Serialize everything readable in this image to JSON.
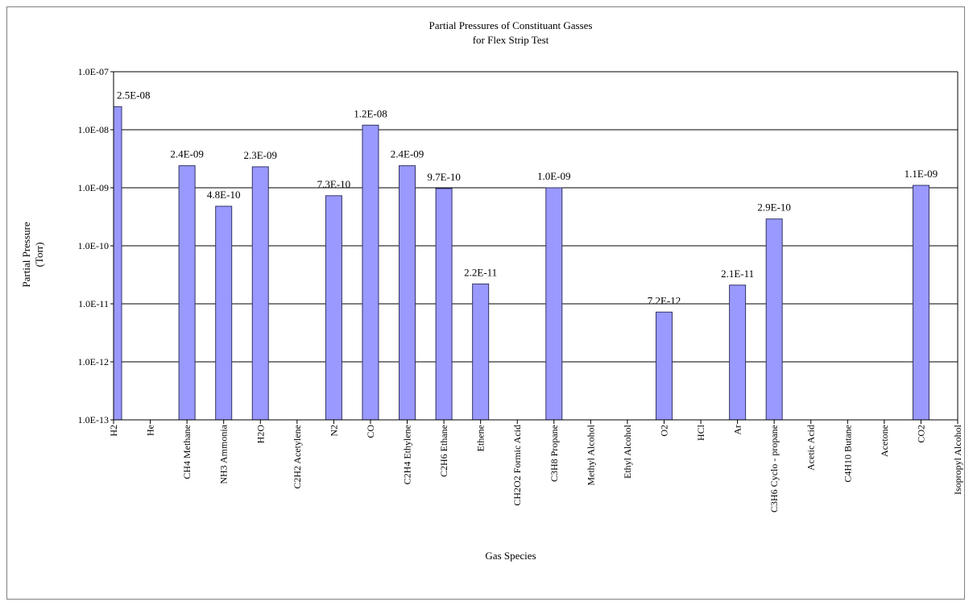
{
  "chart_data": {
    "type": "bar",
    "title": "Partial Pressures of Constituant Gasses",
    "subtitle": "for Flex Strip Test",
    "xlabel": "Gas Species",
    "ylabel": "Partial Pressure",
    "ylabel_unit": "(Torr)",
    "y_scale": "log",
    "ylim": [
      1e-13,
      1e-07
    ],
    "y_ticks": [
      1e-13,
      1e-12,
      1e-11,
      1e-10,
      1e-09,
      1e-08,
      1e-07
    ],
    "y_tick_labels": [
      "1.0E-13",
      "1.0E-12",
      "1.0E-11",
      "1.0E-10",
      "1.0E-09",
      "1.0E-08",
      "1.0E-07"
    ],
    "grid": "horizontal major lines",
    "bar_color": "#9999ff",
    "bar_edge_color": "#333366",
    "categories": [
      "H2",
      "He",
      "CH4 Methane",
      "NH3 Ammonia",
      "H2O",
      "C2H2 Acetylene",
      "N2",
      "CO",
      "C2H4 Ethylene",
      "C2H6 Ethane",
      "Ethene",
      "CH2O2 Formic Acid",
      "C3H8 Propane",
      "Methyl Alcohol",
      "Ethyl Alcohol",
      "O2",
      "HCl",
      "Ar",
      "C3H6 Cyclo - propane",
      "Acetic Acid",
      "C4H10 Butane",
      "Acetone",
      "CO2",
      "Isopropyl Alcohol"
    ],
    "values": [
      2.5e-08,
      null,
      2.4e-09,
      4.8e-10,
      2.3e-09,
      null,
      7.3e-10,
      1.2e-08,
      2.4e-09,
      9.7e-10,
      2.2e-11,
      null,
      1e-09,
      null,
      null,
      7.2e-12,
      null,
      2.1e-11,
      2.9e-10,
      null,
      null,
      null,
      1.1e-09,
      null
    ],
    "data_labels": [
      "2.5E-08",
      "",
      "2.4E-09",
      "4.8E-10",
      "2.3E-09",
      "",
      "7.3E-10",
      "1.2E-08",
      "2.4E-09",
      "9.7E-10",
      "2.2E-11",
      "",
      "1.0E-09",
      "",
      "",
      "7.2E-12",
      "",
      "2.1E-11",
      "2.9E-10",
      "",
      "",
      "",
      "1.1E-09",
      ""
    ]
  }
}
